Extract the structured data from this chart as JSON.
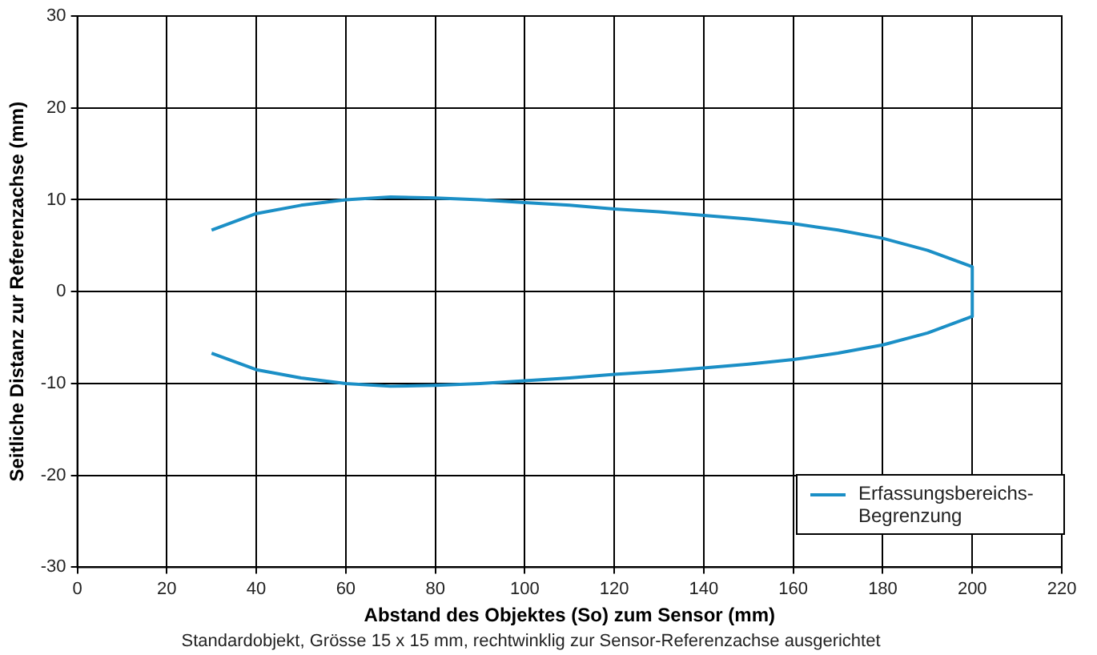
{
  "chart_data": {
    "type": "line",
    "xlabel": "Abstand des Objektes (So) zum Sensor (mm)",
    "ylabel": "Seitliche Distanz zur Referenzachse (mm)",
    "annotations": [
      "Standardobjekt, Grösse 15 x 15 mm, rechtwinklig zur Sensor-Referenzachse ausgerichtet"
    ],
    "series": [
      {
        "name": "Erfassungsbereichs-Begrenzung",
        "color": "#1b8fc6",
        "x": [
          30,
          40,
          50,
          60,
          70,
          80,
          90,
          100,
          110,
          120,
          130,
          140,
          150,
          160,
          170,
          180,
          190,
          200,
          200,
          190,
          180,
          170,
          160,
          150,
          140,
          130,
          120,
          110,
          100,
          90,
          80,
          70,
          60,
          50,
          40,
          30
        ],
        "values": [
          6.7,
          8.5,
          9.4,
          10.0,
          10.3,
          10.2,
          10.0,
          9.7,
          9.4,
          9.0,
          8.7,
          8.3,
          7.9,
          7.4,
          6.7,
          5.8,
          4.5,
          2.7,
          -2.7,
          -4.5,
          -5.8,
          -6.7,
          -7.4,
          -7.9,
          -8.3,
          -8.7,
          -9.0,
          -9.4,
          -9.7,
          -10.0,
          -10.2,
          -10.3,
          -10.0,
          -9.4,
          -8.5,
          -6.7
        ]
      }
    ],
    "xlim": [
      0,
      220
    ],
    "xticks": [
      0,
      20,
      40,
      60,
      80,
      100,
      120,
      140,
      160,
      180,
      200,
      220
    ],
    "ylim": [
      -30,
      30
    ],
    "yticks": [
      -30,
      -20,
      -10,
      0,
      10,
      20,
      30
    ],
    "grid": true,
    "legend": "bottom right",
    "marker": "none",
    "line_style": "solid"
  }
}
